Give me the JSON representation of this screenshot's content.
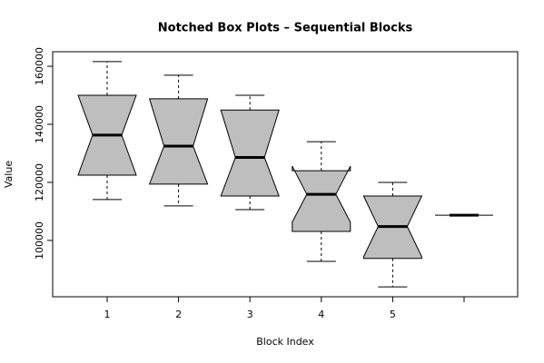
{
  "chart_data": {
    "type": "notched-box",
    "title": "Notched Box Plots – Sequential Blocks",
    "x_label": "Block Index",
    "y_label": "Value",
    "categories": [
      "1",
      "2",
      "3",
      "4",
      "5",
      null
    ],
    "boxes": [
      {
        "low": 114100,
        "q1": 122500,
        "median": 136300,
        "q3": 150000,
        "high": 161600,
        "notch_low": 122500,
        "notch_high": 150000
      },
      {
        "low": 111900,
        "q1": 119400,
        "median": 132500,
        "q3": 148800,
        "high": 156900,
        "notch_low": 119400,
        "notch_high": 148800
      },
      {
        "low": 110600,
        "q1": 115300,
        "median": 128600,
        "q3": 144900,
        "high": 150000,
        "notch_low": 115300,
        "notch_high": 144900
      },
      {
        "low": 92800,
        "q1": 103100,
        "median": 115900,
        "q3": 124000,
        "high": 134000,
        "notch_low": 106300,
        "notch_high": 125600
      },
      {
        "low": 84000,
        "q1": 93800,
        "median": 104800,
        "q3": 115300,
        "high": 120000,
        "notch_low": 94400,
        "notch_high": 115300
      },
      {
        "low": 108700,
        "q1": 108700,
        "median": 108700,
        "q3": 108700,
        "high": 108700,
        "notch_low": 108700,
        "notch_high": 108700
      }
    ],
    "color": "#bebebe",
    "ylim": [
      80600,
      165000
    ],
    "yticks": [
      100000,
      120000,
      140000,
      160000
    ]
  }
}
